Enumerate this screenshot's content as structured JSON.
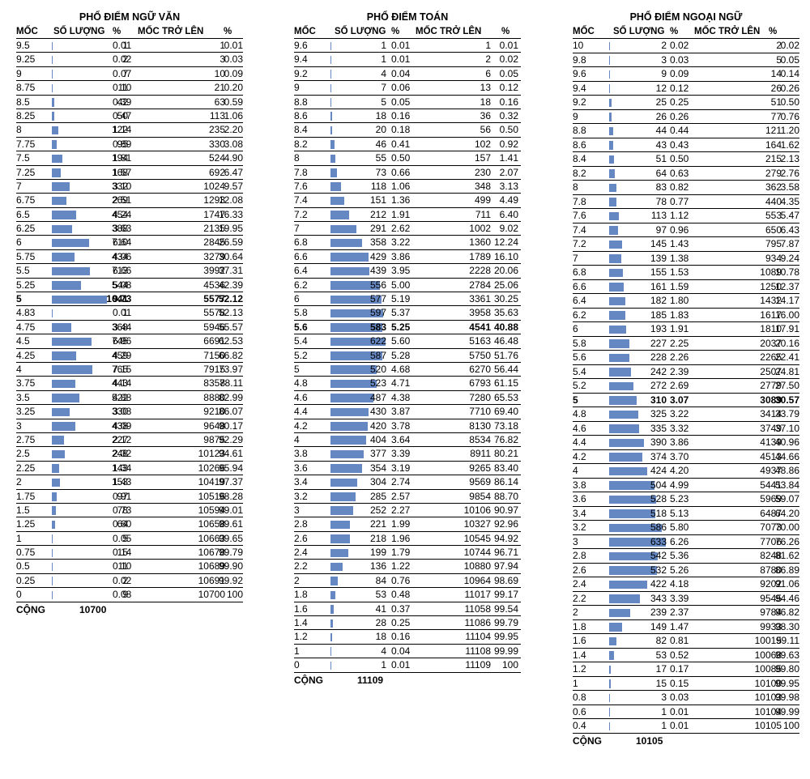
{
  "sheets": [
    {
      "title": "PHỔ ĐIỂM NGỮ VĂN",
      "headers": [
        "MỐC",
        "SỐ LƯỢNG",
        "%",
        "MỐC TRỞ LÊN",
        "%"
      ],
      "bar_max": 1041,
      "highlight_index": 18,
      "rows": [
        [
          "9.5",
          "1",
          "0.01",
          "1",
          "0.01"
        ],
        [
          "9.25",
          "2",
          "0.02",
          "3",
          "0.03"
        ],
        [
          "9",
          "7",
          "0.07",
          "10",
          "0.09"
        ],
        [
          "8.75",
          "11",
          "0.10",
          "21",
          "0.20"
        ],
        [
          "8.5",
          "42",
          "0.39",
          "63",
          "0.59"
        ],
        [
          "8.25",
          "50",
          "0.47",
          "113",
          "1.06"
        ],
        [
          "8",
          "122",
          "1.14",
          "235",
          "2.20"
        ],
        [
          "7.75",
          "95",
          "0.89",
          "330",
          "3.08"
        ],
        [
          "7.5",
          "194",
          "1.81",
          "524",
          "4.90"
        ],
        [
          "7.25",
          "168",
          "1.57",
          "692",
          "6.47"
        ],
        [
          "7",
          "332",
          "3.10",
          "1024",
          "9.57"
        ],
        [
          "6.75",
          "269",
          "2.51",
          "1293",
          "12.08"
        ],
        [
          "6.5",
          "454",
          "4.24",
          "1747",
          "16.33"
        ],
        [
          "6.25",
          "388",
          "3.63",
          "2135",
          "19.95"
        ],
        [
          "6",
          "710",
          "6.64",
          "2845",
          "26.59"
        ],
        [
          "5.75",
          "434",
          "4.06",
          "3279",
          "30.64"
        ],
        [
          "5.5",
          "713",
          "6.66",
          "3992",
          "37.31"
        ],
        [
          "5.25",
          "544",
          "5.08",
          "4536",
          "42.39"
        ],
        [
          "5",
          "1041",
          "9.73",
          "5577",
          "52.12"
        ],
        [
          "4.83",
          "1",
          "0.01",
          "5578",
          "52.13"
        ],
        [
          "4.75",
          "368",
          "3.44",
          "5946",
          "55.57"
        ],
        [
          "4.5",
          "745",
          "6.96",
          "6691",
          "62.53"
        ],
        [
          "4.25",
          "459",
          "4.29",
          "7150",
          "66.82"
        ],
        [
          "4",
          "765",
          "7.15",
          "7915",
          "73.97"
        ],
        [
          "3.75",
          "443",
          "4.14",
          "8358",
          "78.11"
        ],
        [
          "3.5",
          "522",
          "4.88",
          "8880",
          "82.99"
        ],
        [
          "3.25",
          "330",
          "3.08",
          "9210",
          "86.07"
        ],
        [
          "3",
          "438",
          "4.09",
          "9648",
          "90.17"
        ],
        [
          "2.75",
          "227",
          "2.12",
          "9875",
          "92.29"
        ],
        [
          "2.5",
          "248",
          "2.32",
          "10123",
          "94.61"
        ],
        [
          "2.25",
          "143",
          "1.34",
          "10266",
          "95.94"
        ],
        [
          "2",
          "153",
          "1.43",
          "10419",
          "97.37"
        ],
        [
          "1.75",
          "97",
          "0.91",
          "10516",
          "98.28"
        ],
        [
          "1.5",
          "78",
          "0.73",
          "10594",
          "99.01"
        ],
        [
          "1.25",
          "64",
          "0.60",
          "10658",
          "99.61"
        ],
        [
          "1",
          "5",
          "0.05",
          "10663",
          "99.65"
        ],
        [
          "0.75",
          "15",
          "0.14",
          "10678",
          "99.79"
        ],
        [
          "0.5",
          "11",
          "0.10",
          "10689",
          "99.90"
        ],
        [
          "0.25",
          "2",
          "0.02",
          "10691",
          "99.92"
        ],
        [
          "0",
          "9",
          "0.08",
          "10700",
          "100"
        ]
      ],
      "total_label": "CỘNG",
      "total_value": "10700"
    },
    {
      "title": "PHỔ ĐIỂM TOÁN",
      "headers": [
        "MỐC",
        "SỐ LƯỢNG",
        "%",
        "MỐC TRỞ LÊN",
        "%"
      ],
      "bar_max": 622,
      "highlight_index": 20,
      "rows": [
        [
          "9.6",
          "1",
          "0.01",
          "1",
          "0.01"
        ],
        [
          "9.4",
          "1",
          "0.01",
          "2",
          "0.02"
        ],
        [
          "9.2",
          "4",
          "0.04",
          "6",
          "0.05"
        ],
        [
          "9",
          "7",
          "0.06",
          "13",
          "0.12"
        ],
        [
          "8.8",
          "5",
          "0.05",
          "18",
          "0.16"
        ],
        [
          "8.6",
          "18",
          "0.16",
          "36",
          "0.32"
        ],
        [
          "8.4",
          "20",
          "0.18",
          "56",
          "0.50"
        ],
        [
          "8.2",
          "46",
          "0.41",
          "102",
          "0.92"
        ],
        [
          "8",
          "55",
          "0.50",
          "157",
          "1.41"
        ],
        [
          "7.8",
          "73",
          "0.66",
          "230",
          "2.07"
        ],
        [
          "7.6",
          "118",
          "1.06",
          "348",
          "3.13"
        ],
        [
          "7.4",
          "151",
          "1.36",
          "499",
          "4.49"
        ],
        [
          "7.2",
          "212",
          "1.91",
          "711",
          "6.40"
        ],
        [
          "7",
          "291",
          "2.62",
          "1002",
          "9.02"
        ],
        [
          "6.8",
          "358",
          "3.22",
          "1360",
          "12.24"
        ],
        [
          "6.6",
          "429",
          "3.86",
          "1789",
          "16.10"
        ],
        [
          "6.4",
          "439",
          "3.95",
          "2228",
          "20.06"
        ],
        [
          "6.2",
          "556",
          "5.00",
          "2784",
          "25.06"
        ],
        [
          "6",
          "577",
          "5.19",
          "3361",
          "30.25"
        ],
        [
          "5.8",
          "597",
          "5.37",
          "3958",
          "35.63"
        ],
        [
          "5.6",
          "583",
          "5.25",
          "4541",
          "40.88"
        ],
        [
          "5.4",
          "622",
          "5.60",
          "5163",
          "46.48"
        ],
        [
          "5.2",
          "587",
          "5.28",
          "5750",
          "51.76"
        ],
        [
          "5",
          "520",
          "4.68",
          "6270",
          "56.44"
        ],
        [
          "4.8",
          "523",
          "4.71",
          "6793",
          "61.15"
        ],
        [
          "4.6",
          "487",
          "4.38",
          "7280",
          "65.53"
        ],
        [
          "4.4",
          "430",
          "3.87",
          "7710",
          "69.40"
        ],
        [
          "4.2",
          "420",
          "3.78",
          "8130",
          "73.18"
        ],
        [
          "4",
          "404",
          "3.64",
          "8534",
          "76.82"
        ],
        [
          "3.8",
          "377",
          "3.39",
          "8911",
          "80.21"
        ],
        [
          "3.6",
          "354",
          "3.19",
          "9265",
          "83.40"
        ],
        [
          "3.4",
          "304",
          "2.74",
          "9569",
          "86.14"
        ],
        [
          "3.2",
          "285",
          "2.57",
          "9854",
          "88.70"
        ],
        [
          "3",
          "252",
          "2.27",
          "10106",
          "90.97"
        ],
        [
          "2.8",
          "221",
          "1.99",
          "10327",
          "92.96"
        ],
        [
          "2.6",
          "218",
          "1.96",
          "10545",
          "94.92"
        ],
        [
          "2.4",
          "199",
          "1.79",
          "10744",
          "96.71"
        ],
        [
          "2.2",
          "136",
          "1.22",
          "10880",
          "97.94"
        ],
        [
          "2",
          "84",
          "0.76",
          "10964",
          "98.69"
        ],
        [
          "1.8",
          "53",
          "0.48",
          "11017",
          "99.17"
        ],
        [
          "1.6",
          "41",
          "0.37",
          "11058",
          "99.54"
        ],
        [
          "1.4",
          "28",
          "0.25",
          "11086",
          "99.79"
        ],
        [
          "1.2",
          "18",
          "0.16",
          "11104",
          "99.95"
        ],
        [
          "1",
          "4",
          "0.04",
          "11108",
          "99.99"
        ],
        [
          "0",
          "1",
          "0.01",
          "11109",
          "100"
        ]
      ],
      "total_label": "CỘNG",
      "total_value": "11109"
    },
    {
      "title": "PHỔ ĐIỂM NGOẠI NGỮ",
      "headers": [
        "MỐC",
        "SỐ LƯỢNG",
        "%",
        "MỐC TRỞ LÊN",
        "%"
      ],
      "bar_max": 633,
      "highlight_index": 25,
      "rows": [
        [
          "10",
          "2",
          "0.02",
          "2",
          "0.02"
        ],
        [
          "9.8",
          "3",
          "0.03",
          "5",
          "0.05"
        ],
        [
          "9.6",
          "9",
          "0.09",
          "14",
          "0.14"
        ],
        [
          "9.4",
          "12",
          "0.12",
          "26",
          "0.26"
        ],
        [
          "9.2",
          "25",
          "0.25",
          "51",
          "0.50"
        ],
        [
          "9",
          "26",
          "0.26",
          "77",
          "0.76"
        ],
        [
          "8.8",
          "44",
          "0.44",
          "121",
          "1.20"
        ],
        [
          "8.6",
          "43",
          "0.43",
          "164",
          "1.62"
        ],
        [
          "8.4",
          "51",
          "0.50",
          "215",
          "2.13"
        ],
        [
          "8.2",
          "64",
          "0.63",
          "279",
          "2.76"
        ],
        [
          "8",
          "83",
          "0.82",
          "362",
          "3.58"
        ],
        [
          "7.8",
          "78",
          "0.77",
          "440",
          "4.35"
        ],
        [
          "7.6",
          "113",
          "1.12",
          "553",
          "5.47"
        ],
        [
          "7.4",
          "97",
          "0.96",
          "650",
          "6.43"
        ],
        [
          "7.2",
          "145",
          "1.43",
          "795",
          "7.87"
        ],
        [
          "7",
          "139",
          "1.38",
          "934",
          "9.24"
        ],
        [
          "6.8",
          "155",
          "1.53",
          "1089",
          "10.78"
        ],
        [
          "6.6",
          "161",
          "1.59",
          "1250",
          "12.37"
        ],
        [
          "6.4",
          "182",
          "1.80",
          "1432",
          "14.17"
        ],
        [
          "6.2",
          "185",
          "1.83",
          "1617",
          "16.00"
        ],
        [
          "6",
          "193",
          "1.91",
          "1810",
          "17.91"
        ],
        [
          "5.8",
          "227",
          "2.25",
          "2037",
          "20.16"
        ],
        [
          "5.6",
          "228",
          "2.26",
          "2265",
          "22.41"
        ],
        [
          "5.4",
          "242",
          "2.39",
          "2507",
          "24.81"
        ],
        [
          "5.2",
          "272",
          "2.69",
          "2779",
          "27.50"
        ],
        [
          "5",
          "310",
          "3.07",
          "3089",
          "30.57"
        ],
        [
          "4.8",
          "325",
          "3.22",
          "3414",
          "33.79"
        ],
        [
          "4.6",
          "335",
          "3.32",
          "3749",
          "37.10"
        ],
        [
          "4.4",
          "390",
          "3.86",
          "4139",
          "40.96"
        ],
        [
          "4.2",
          "374",
          "3.70",
          "4513",
          "44.66"
        ],
        [
          "4",
          "424",
          "4.20",
          "4937",
          "48.86"
        ],
        [
          "3.8",
          "504",
          "4.99",
          "5441",
          "53.84"
        ],
        [
          "3.6",
          "528",
          "5.23",
          "5969",
          "59.07"
        ],
        [
          "3.4",
          "518",
          "5.13",
          "6487",
          "64.20"
        ],
        [
          "3.2",
          "586",
          "5.80",
          "7073",
          "70.00"
        ],
        [
          "3",
          "633",
          "6.26",
          "7706",
          "76.26"
        ],
        [
          "2.8",
          "542",
          "5.36",
          "8248",
          "81.62"
        ],
        [
          "2.6",
          "532",
          "5.26",
          "8780",
          "86.89"
        ],
        [
          "2.4",
          "422",
          "4.18",
          "9202",
          "91.06"
        ],
        [
          "2.2",
          "343",
          "3.39",
          "9545",
          "94.46"
        ],
        [
          "2",
          "239",
          "2.37",
          "9784",
          "96.82"
        ],
        [
          "1.8",
          "149",
          "1.47",
          "9933",
          "98.30"
        ],
        [
          "1.6",
          "82",
          "0.81",
          "10015",
          "99.11"
        ],
        [
          "1.4",
          "53",
          "0.52",
          "10068",
          "99.63"
        ],
        [
          "1.2",
          "17",
          "0.17",
          "10085",
          "99.80"
        ],
        [
          "1",
          "15",
          "0.15",
          "10100",
          "99.95"
        ],
        [
          "0.8",
          "3",
          "0.03",
          "10103",
          "99.98"
        ],
        [
          "0.6",
          "1",
          "0.01",
          "10104",
          "99.99"
        ],
        [
          "0.4",
          "1",
          "0.01",
          "10105",
          "100"
        ]
      ],
      "total_label": "CỘNG",
      "total_value": "10105"
    }
  ],
  "colors": {
    "bar": "#6588c2",
    "rule": "#000000",
    "text": "#000000"
  }
}
